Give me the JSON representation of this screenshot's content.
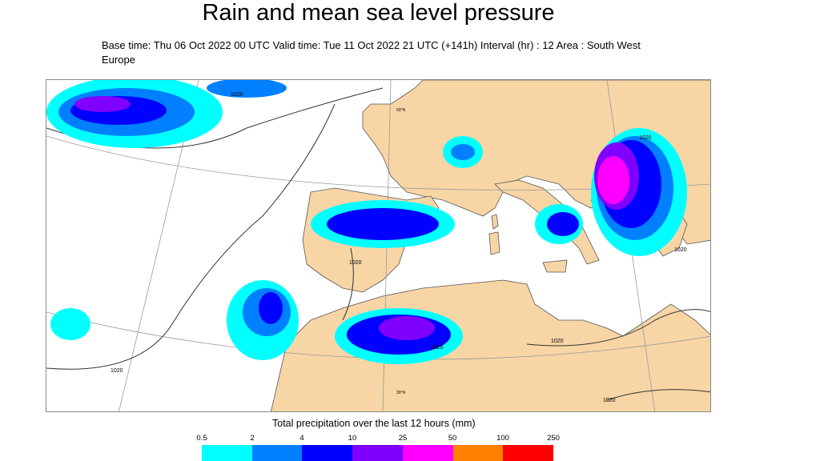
{
  "title": "Rain and mean sea level pressure",
  "subtitle": "Base time: Thu 06 Oct 2022 00 UTC Valid time: Tue 11 Oct 2022 21 UTC (+141h) Interval (hr) : 12 Area : South West Europe",
  "map": {
    "isobar_labels": [
      "1020",
      "1020",
      "1020",
      "1020",
      "1020",
      "1020",
      "1020",
      "1020"
    ],
    "graticule_labels": [
      "50°N",
      "30°N"
    ],
    "colors": {
      "land": "#f7d5a5",
      "sea": "#ffffff",
      "border": "#444444"
    }
  },
  "legend": {
    "title": "Total precipitation over the last 12 hours (mm)",
    "thresholds": [
      "0.5",
      "2",
      "4",
      "10",
      "25",
      "50",
      "100",
      "250"
    ],
    "colors": [
      "#00ffff",
      "#0080ff",
      "#0000ff",
      "#8000ff",
      "#ff00ff",
      "#ff8000",
      "#ff0000"
    ]
  }
}
